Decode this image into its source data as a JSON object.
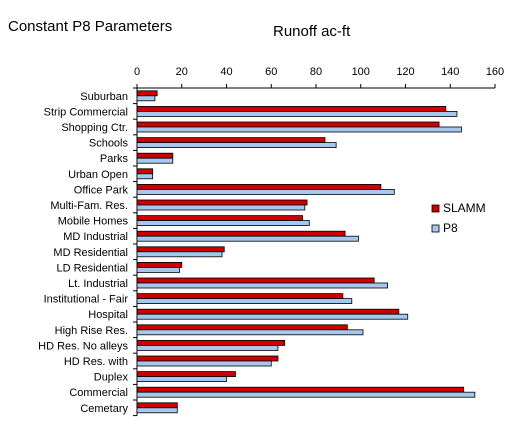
{
  "chart_data": {
    "type": "bar",
    "orientation": "horizontal",
    "title": "Constant P8 Parameters",
    "xlabel": "Runoff ac-ft",
    "ylabel": "",
    "xlim": [
      0,
      160
    ],
    "xticks": [
      0,
      20,
      40,
      60,
      80,
      100,
      120,
      140,
      160
    ],
    "grid": false,
    "legend_position": "right",
    "categories": [
      "Suburban",
      "Strip Commercial",
      "Shopping Ctr.",
      "Schools",
      "Parks",
      "Urban Open",
      "Office Park",
      "Multi-Fam. Res.",
      "Mobile Homes",
      "MD Industrial",
      "MD Residential",
      "LD Residential",
      "Lt. Industrial",
      "Institutional - Fair",
      "Hospital",
      "High Rise Res.",
      "HD Res. No alleys",
      "HD Res. with",
      "Duplex",
      "Commercial",
      "Cemetary"
    ],
    "series": [
      {
        "name": "SLAMM",
        "color": "#cc0000",
        "values": [
          9,
          138,
          135,
          84,
          16,
          7,
          109,
          76,
          74,
          93,
          39,
          20,
          106,
          92,
          117,
          94,
          66,
          63,
          44,
          146,
          18
        ]
      },
      {
        "name": "P8",
        "color": "#a6c8ee",
        "values": [
          8,
          143,
          145,
          89,
          16,
          7,
          115,
          75,
          77,
          99,
          38,
          19,
          112,
          96,
          121,
          101,
          63,
          60,
          40,
          151,
          18
        ]
      }
    ]
  }
}
